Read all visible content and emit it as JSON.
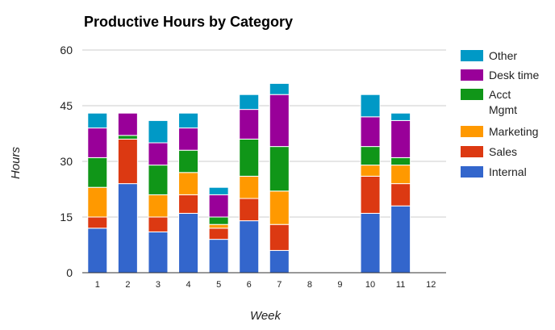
{
  "chart_data": {
    "type": "bar",
    "stacked": true,
    "title": "Productive Hours by Category",
    "xlabel": "Week",
    "ylabel": "Hours",
    "ylim": [
      0,
      60
    ],
    "yticks": [
      0,
      15,
      30,
      45,
      60
    ],
    "grid": true,
    "legend": "right",
    "categories": [
      "1",
      "2",
      "3",
      "4",
      "5",
      "6",
      "7",
      "8",
      "9",
      "10",
      "11",
      "12"
    ],
    "series": [
      {
        "name": "Internal",
        "color": "#3366cc",
        "values": [
          12,
          24,
          11,
          16,
          9,
          14,
          6,
          0,
          0,
          16,
          18,
          0
        ]
      },
      {
        "name": "Sales",
        "color": "#dc3912",
        "values": [
          3,
          12,
          4,
          5,
          3,
          6,
          7,
          0,
          0,
          10,
          6,
          0
        ]
      },
      {
        "name": "Marketing",
        "color": "#ff9900",
        "values": [
          8,
          0,
          6,
          6,
          1,
          6,
          9,
          0,
          0,
          3,
          5,
          0
        ]
      },
      {
        "name": "Acct\nMgmt",
        "color": "#109618",
        "values": [
          8,
          1,
          8,
          6,
          2,
          10,
          12,
          0,
          0,
          5,
          2,
          0
        ]
      },
      {
        "name": "Desk time",
        "color": "#990099",
        "values": [
          8,
          6,
          6,
          6,
          6,
          8,
          14,
          0,
          0,
          8,
          10,
          0
        ]
      },
      {
        "name": "Other",
        "color": "#0099c6",
        "values": [
          4,
          0,
          6,
          4,
          2,
          4,
          3,
          0,
          0,
          6,
          2,
          0
        ]
      }
    ],
    "legend_order": [
      "Other",
      "Desk time",
      "Acct\nMgmt",
      "Marketing",
      "Sales",
      "Internal"
    ]
  }
}
